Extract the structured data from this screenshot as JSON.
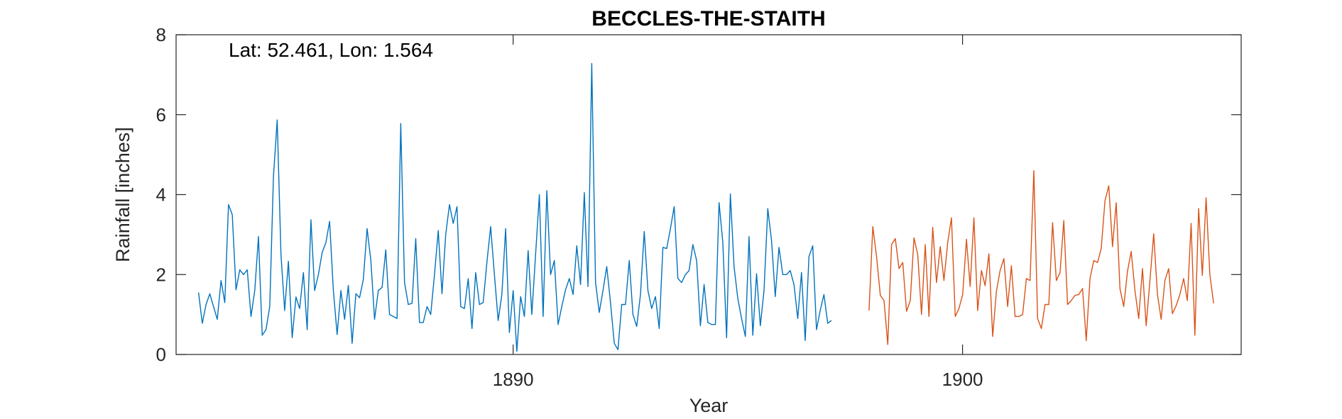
{
  "chart_data": {
    "type": "line",
    "title": "BECCLES-THE-STAITH",
    "xlabel": "Year",
    "ylabel": "Rainfall [inches]",
    "annotation": "Lat: 52.461, Lon: 1.564",
    "xlim": [
      1882.5,
      1906.2
    ],
    "ylim": [
      0,
      8
    ],
    "x_ticks": [
      1890,
      1900
    ],
    "y_ticks": [
      0,
      2,
      4,
      6,
      8
    ],
    "grid": false,
    "series": [
      {
        "color": "#0072BD",
        "start_year": 1883.0,
        "step": 0.08333,
        "values": [
          1.55,
          0.78,
          1.25,
          1.52,
          1.2,
          0.88,
          1.85,
          1.3,
          3.75,
          3.5,
          1.62,
          2.12,
          2.0,
          2.12,
          0.95,
          1.6,
          2.95,
          0.48,
          0.62,
          1.2,
          4.45,
          5.87,
          2.5,
          1.1,
          2.33,
          0.42,
          1.44,
          1.15,
          2.05,
          0.62,
          3.37,
          1.6,
          2.0,
          2.55,
          2.8,
          3.33,
          1.6,
          0.5,
          1.6,
          0.88,
          1.73,
          0.28,
          1.52,
          1.42,
          1.88,
          3.15,
          2.35,
          0.88,
          1.6,
          1.68,
          2.62,
          1.0,
          0.95,
          0.9,
          5.78,
          1.8,
          1.25,
          1.28,
          2.9,
          0.8,
          0.8,
          1.2,
          1.0,
          2.0,
          3.1,
          1.52,
          3.0,
          3.75,
          3.28,
          3.7,
          1.2,
          1.15,
          1.9,
          0.65,
          2.05,
          1.25,
          1.3,
          2.3,
          3.2,
          2.0,
          0.85,
          1.5,
          3.15,
          0.55,
          1.6,
          0.08,
          1.45,
          0.95,
          2.6,
          1.0,
          2.5,
          4.0,
          0.95,
          4.1,
          2.0,
          2.35,
          0.75,
          1.2,
          1.62,
          1.9,
          1.5,
          2.72,
          1.75,
          4.05,
          1.7,
          7.28,
          1.8,
          1.05,
          1.6,
          2.2,
          1.3,
          0.28,
          0.12,
          1.25,
          1.25,
          2.35,
          1.0,
          0.7,
          1.5,
          3.08,
          1.6,
          1.15,
          1.45,
          0.65,
          2.68,
          2.65,
          3.15,
          3.7,
          1.9,
          1.8,
          2.0,
          2.1,
          2.75,
          2.35,
          0.72,
          1.75,
          0.8,
          0.75,
          0.75,
          3.8,
          2.8,
          0.42,
          4.02,
          2.2,
          1.4,
          0.9,
          0.45,
          2.95,
          0.48,
          2.02,
          0.72,
          1.6,
          3.65,
          2.85,
          1.45,
          2.68,
          2.0,
          2.0,
          2.1,
          1.75,
          0.9,
          2.05,
          0.35,
          2.45,
          2.72,
          0.62,
          1.1,
          1.5,
          0.78,
          0.85
        ]
      },
      {
        "color": "#D95319",
        "start_year": 1897.92,
        "step": 0.08333,
        "values": [
          1.1,
          3.2,
          2.45,
          1.48,
          1.35,
          0.25,
          2.75,
          2.9,
          2.15,
          2.3,
          1.08,
          1.35,
          2.92,
          2.5,
          1.0,
          2.75,
          0.95,
          3.18,
          1.8,
          2.7,
          1.85,
          2.8,
          3.42,
          0.95,
          1.15,
          1.5,
          2.88,
          1.7,
          3.42,
          1.1,
          2.1,
          1.72,
          2.52,
          0.45,
          1.58,
          2.1,
          2.4,
          1.2,
          2.22,
          0.95,
          0.95,
          1.0,
          1.9,
          1.85,
          4.6,
          0.9,
          0.65,
          1.25,
          1.25,
          3.3,
          1.85,
          2.05,
          3.35,
          1.25,
          1.35,
          1.48,
          1.5,
          1.65,
          0.35,
          1.9,
          2.35,
          2.3,
          2.65,
          3.85,
          4.22,
          2.7,
          3.8,
          1.65,
          1.2,
          2.08,
          2.58,
          1.6,
          0.9,
          2.15,
          0.72,
          1.85,
          3.02,
          1.5,
          0.88,
          1.85,
          2.15,
          1.02,
          1.22,
          1.5,
          1.9,
          1.35,
          3.28,
          0.48,
          3.65,
          1.98,
          3.92,
          2.0,
          1.28
        ]
      }
    ]
  }
}
